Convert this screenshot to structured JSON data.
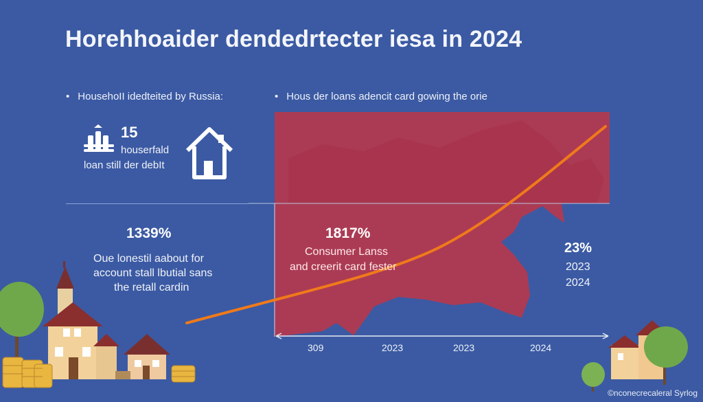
{
  "title": "Horehhoaider dendedrtecter iesa in 2024",
  "left_panel": {
    "bullet": "HousehoII idedteited by Russia:",
    "stat_number": "15",
    "stat_line1": "houserfald",
    "stat_line2": "loan still der debIt",
    "percent": "1339%",
    "desc_line1": "Oue lonestil aabout for",
    "desc_line2": "account stall lbutial sans",
    "desc_line3": "the retall cardin"
  },
  "right_panel": {
    "bullet": "Hous der loans adencit card gowing the orie",
    "percent": "1817%",
    "desc_line1": "Consumer Lanss",
    "desc_line2": "and creerit card fester",
    "side_percent": "23%",
    "side_year1": "2023",
    "side_year2": "2024"
  },
  "axis": {
    "labels": [
      "309",
      "2023",
      "2023",
      "2024"
    ]
  },
  "credit": "©nconecrecaleral Syrlog",
  "colors": {
    "background": "#3b5aa3",
    "map_red": "#b5384d",
    "curve": "#f07a1a",
    "tree_green": "#6fa84a",
    "coin_gold": "#e9b640"
  },
  "icons": [
    "money-stack-icon",
    "house-icon"
  ]
}
